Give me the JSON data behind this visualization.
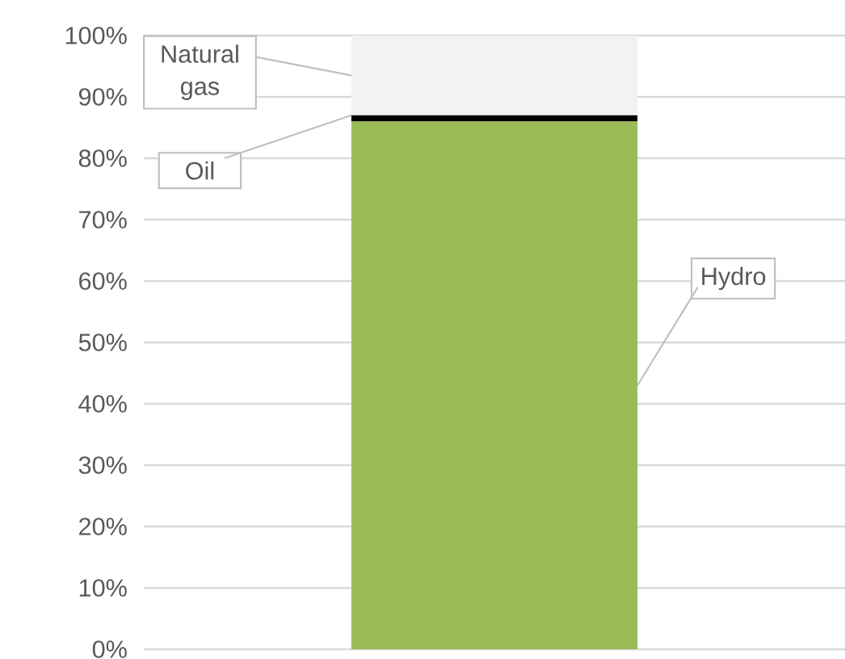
{
  "chart_data": {
    "type": "bar",
    "stacked": true,
    "categories": [
      null
    ],
    "series": [
      {
        "name": "Hydro",
        "color": "#9bbb59",
        "values": [
          86
        ]
      },
      {
        "name": "Oil",
        "color": "#000000",
        "values": [
          1
        ]
      },
      {
        "name": "Natural gas",
        "color": "#f2f2f2",
        "values": [
          13
        ]
      }
    ],
    "ylim": [
      0,
      100
    ],
    "yticks": [
      {
        "value": 0,
        "label": "0%"
      },
      {
        "value": 10,
        "label": "10%"
      },
      {
        "value": 20,
        "label": "20%"
      },
      {
        "value": 30,
        "label": "30%"
      },
      {
        "value": 40,
        "label": "40%"
      },
      {
        "value": 50,
        "label": "50%"
      },
      {
        "value": 60,
        "label": "60%"
      },
      {
        "value": 70,
        "label": "70%"
      },
      {
        "value": 80,
        "label": "80%"
      },
      {
        "value": 90,
        "label": "90%"
      },
      {
        "value": 100,
        "label": "100%"
      }
    ],
    "grid": "y",
    "legend": false
  }
}
